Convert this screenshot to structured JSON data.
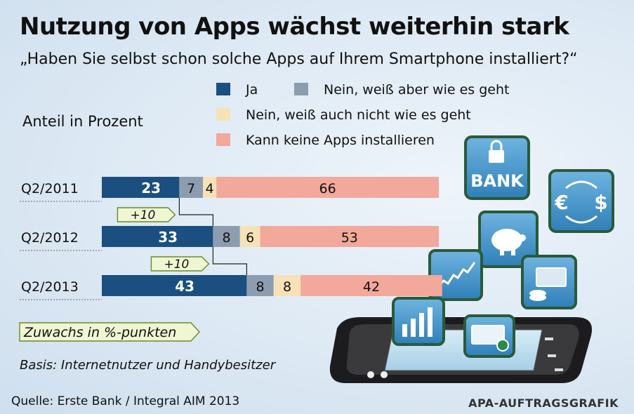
{
  "header": {
    "title": "Nutzung von Apps wächst weiterhin stark",
    "subtitle": "„Haben Sie selbst schon solche Apps auf Ihrem Smartphone installiert?“"
  },
  "unit_label": "Anteil in Prozent",
  "legend": [
    {
      "label": "Ja",
      "color": "#1a4f7f"
    },
    {
      "label": "Nein, weiß aber wie es geht",
      "color": "#8d9daf"
    },
    {
      "label": "Nein, weiß auch nicht wie es geht",
      "color": "#f7e2b8"
    },
    {
      "label": "Kann keine Apps installieren",
      "color": "#f2a89a"
    }
  ],
  "chart_data": {
    "type": "bar",
    "orientation": "horizontal",
    "stacked": true,
    "categories": [
      "Q2/2011",
      "Q2/2012",
      "Q2/2013"
    ],
    "series": [
      {
        "name": "Ja",
        "values": [
          23,
          33,
          43
        ],
        "color": "#1a4f7f"
      },
      {
        "name": "Nein, weiß aber wie es geht",
        "values": [
          7,
          8,
          8
        ],
        "color": "#8d9daf"
      },
      {
        "name": "Nein, weiß auch nicht wie es geht",
        "values": [
          4,
          6,
          8
        ],
        "color": "#f7e2b8"
      },
      {
        "name": "Kann keine Apps installieren",
        "values": [
          66,
          53,
          42
        ],
        "color": "#f2a89a"
      }
    ],
    "annotations": [
      "+10",
      "+10"
    ],
    "growth_legend": "Zuwachs in %-punkten",
    "xlim": [
      0,
      100
    ]
  },
  "icons": [
    "bank-icon",
    "currency-exchange-icon",
    "piggy-bank-icon",
    "trend-chart-icon",
    "cards-coins-icon",
    "bar-chart-icon",
    "check-payment-icon",
    "smartphone-icon"
  ],
  "icon_labels": {
    "bank": "BANK",
    "euro": "€",
    "dollar": "$"
  },
  "footer": {
    "basis": "Basis: Internetnutzer und Handybesitzer",
    "source": "Quelle: Erste Bank / Integral AIM 2013",
    "credit": "APA-AUFTRAGSGRAFIK"
  }
}
